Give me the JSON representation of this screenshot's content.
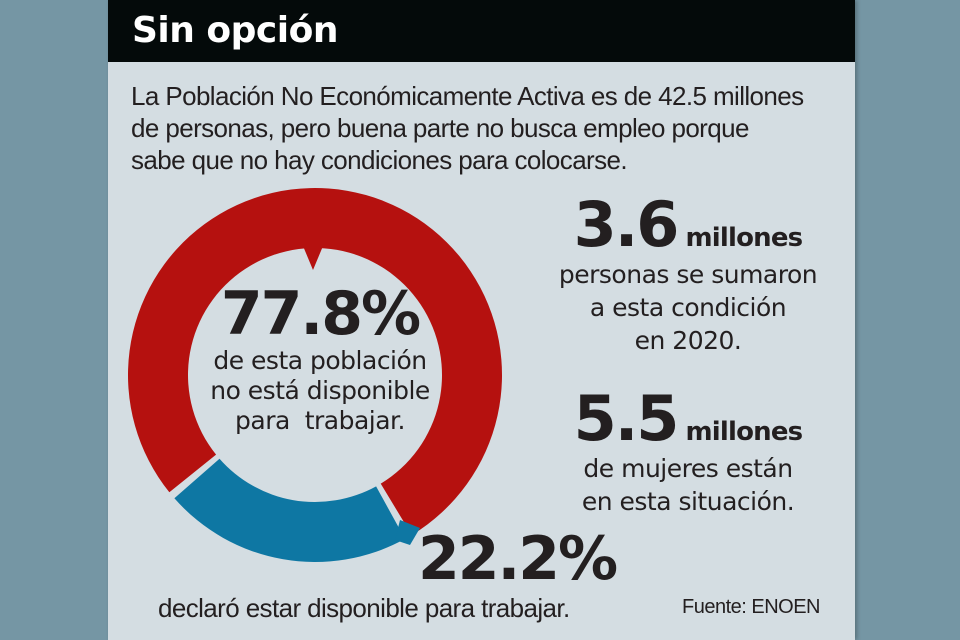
{
  "header": {
    "title": "Sin opción"
  },
  "intro": {
    "lines": [
      "La Población No Económicamente Activa es de 42.5 millones",
      "de personas, pero buena parte no busca empleo porque",
      "sabe que no hay condiciones para colocarse."
    ]
  },
  "chart_data": {
    "type": "pie",
    "style": "donut",
    "categories": [
      "No disponible para trabajar",
      "Disponible para trabajar"
    ],
    "values": [
      77.8,
      22.2
    ],
    "unit": "%",
    "colors": [
      "#b5110f",
      "#0e77a3"
    ],
    "labels": [
      {
        "value": "77.8%",
        "lines": [
          "de esta población",
          "no está disponible",
          "para  trabajar."
        ]
      },
      {
        "value": "22.2%",
        "lines": [
          "declaró estar disponible para trabajar."
        ]
      }
    ],
    "total_label": "42.5 millones de personas"
  },
  "donut": {
    "red": {
      "value": "77.8%",
      "desc": [
        "de esta población",
        "no está disponible",
        "para  trabajar."
      ]
    },
    "blue": {
      "value": "22.2%",
      "desc": "declaró estar disponible para trabajar."
    }
  },
  "stats": [
    {
      "value": "3.6",
      "unit": "millones",
      "desc": [
        "personas se sumaron",
        "a esta condición",
        "en 2020."
      ]
    },
    {
      "value": "5.5",
      "unit": "millones",
      "desc": [
        "de mujeres están",
        "en esta situación."
      ]
    }
  ],
  "source": "Fuente: ENOEN",
  "colors": {
    "background": "#7596a4",
    "card": "#d4dde2",
    "header": "#040a0a",
    "red": "#b5110f",
    "blue": "#0e77a3",
    "text": "#231f20"
  }
}
